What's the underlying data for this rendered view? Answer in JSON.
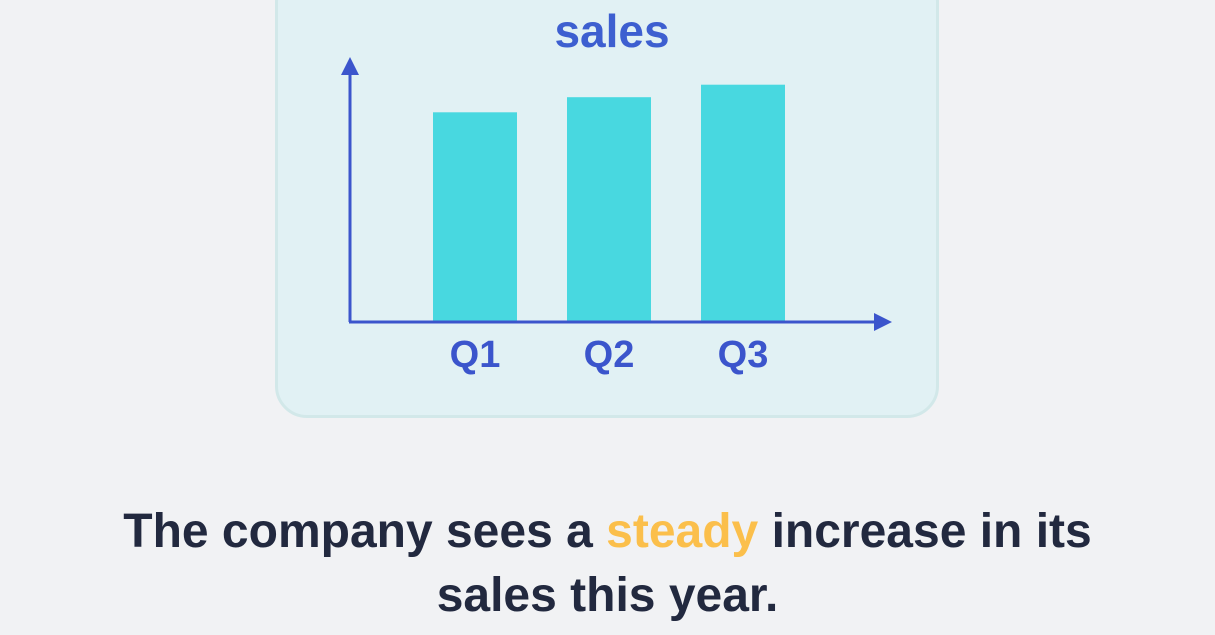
{
  "colors": {
    "background": "#f1f2f4",
    "card": "#e1f1f4",
    "bar": "#48d8e0",
    "axis": "#3b55cc",
    "title": "#3d5fd0",
    "caption": "#22293f",
    "highlight": "#fbbf4b"
  },
  "chart_data": {
    "type": "bar",
    "title": "sales",
    "xlabel": "",
    "ylabel": "",
    "categories": [
      "Q1",
      "Q2",
      "Q3"
    ],
    "values": [
      83,
      89,
      94
    ],
    "ylim": [
      0,
      105
    ],
    "grid": false,
    "axis_ticks_shown": false
  },
  "caption": {
    "before": "The company sees a ",
    "highlight": "steady",
    "after": " increase in its sales this year."
  }
}
